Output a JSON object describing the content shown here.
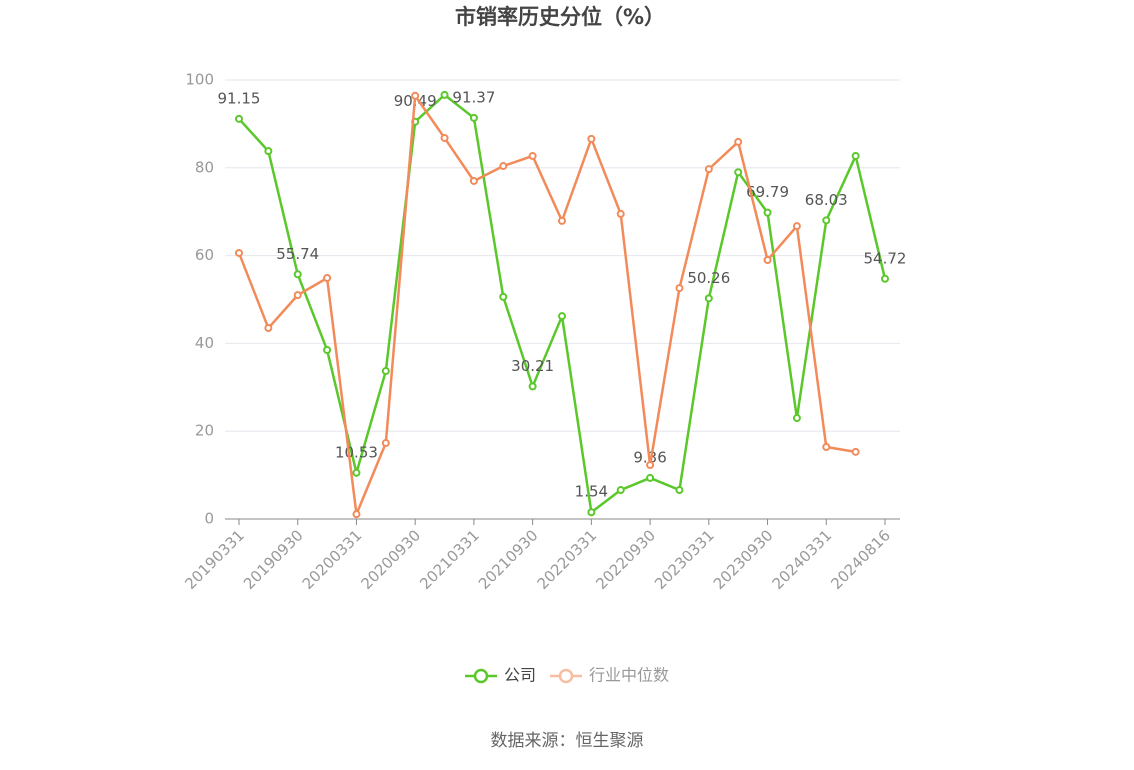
{
  "chart_data": {
    "type": "line",
    "title": "市销率历史分位（%）",
    "categories": [
      "20190331",
      null,
      "20190930",
      null,
      "20200331",
      null,
      "20200930",
      null,
      "20210331",
      null,
      "20210930",
      null,
      "20220331",
      null,
      "20220930",
      null,
      "20230331",
      null,
      "20230930",
      null,
      "20240331",
      null,
      "20240816"
    ],
    "series": [
      {
        "name": "公司",
        "color": "#5ac82a",
        "values": [
          91.15,
          83.8,
          55.74,
          38.5,
          10.53,
          33.7,
          90.49,
          96.6,
          91.37,
          50.6,
          30.21,
          46.2,
          1.54,
          6.6,
          9.36,
          6.6,
          50.26,
          79.0,
          69.79,
          23.0,
          68.03,
          82.7,
          54.72
        ],
        "value_labels": [
          "91.15",
          null,
          "55.74",
          null,
          "10.53",
          null,
          "90.49",
          null,
          "91.37",
          null,
          "30.21",
          null,
          "1.54",
          null,
          "9.36",
          null,
          "50.26",
          null,
          "69.79",
          null,
          "68.03",
          null,
          "54.72"
        ]
      },
      {
        "name": "行业中位数",
        "color": "#f28a59",
        "values": [
          60.6,
          43.5,
          51.0,
          54.9,
          1.1,
          17.3,
          96.4,
          86.8,
          77.0,
          80.4,
          82.7,
          67.9,
          86.6,
          69.5,
          12.3,
          52.6,
          79.7,
          85.9,
          59.0,
          66.7,
          16.4,
          15.3,
          null
        ]
      }
    ],
    "ylim": [
      0,
      100
    ],
    "yticks": [
      0,
      20,
      40,
      60,
      80,
      100
    ],
    "grid": true,
    "legend": "bottom",
    "source": "数据来源：恒生聚源"
  }
}
